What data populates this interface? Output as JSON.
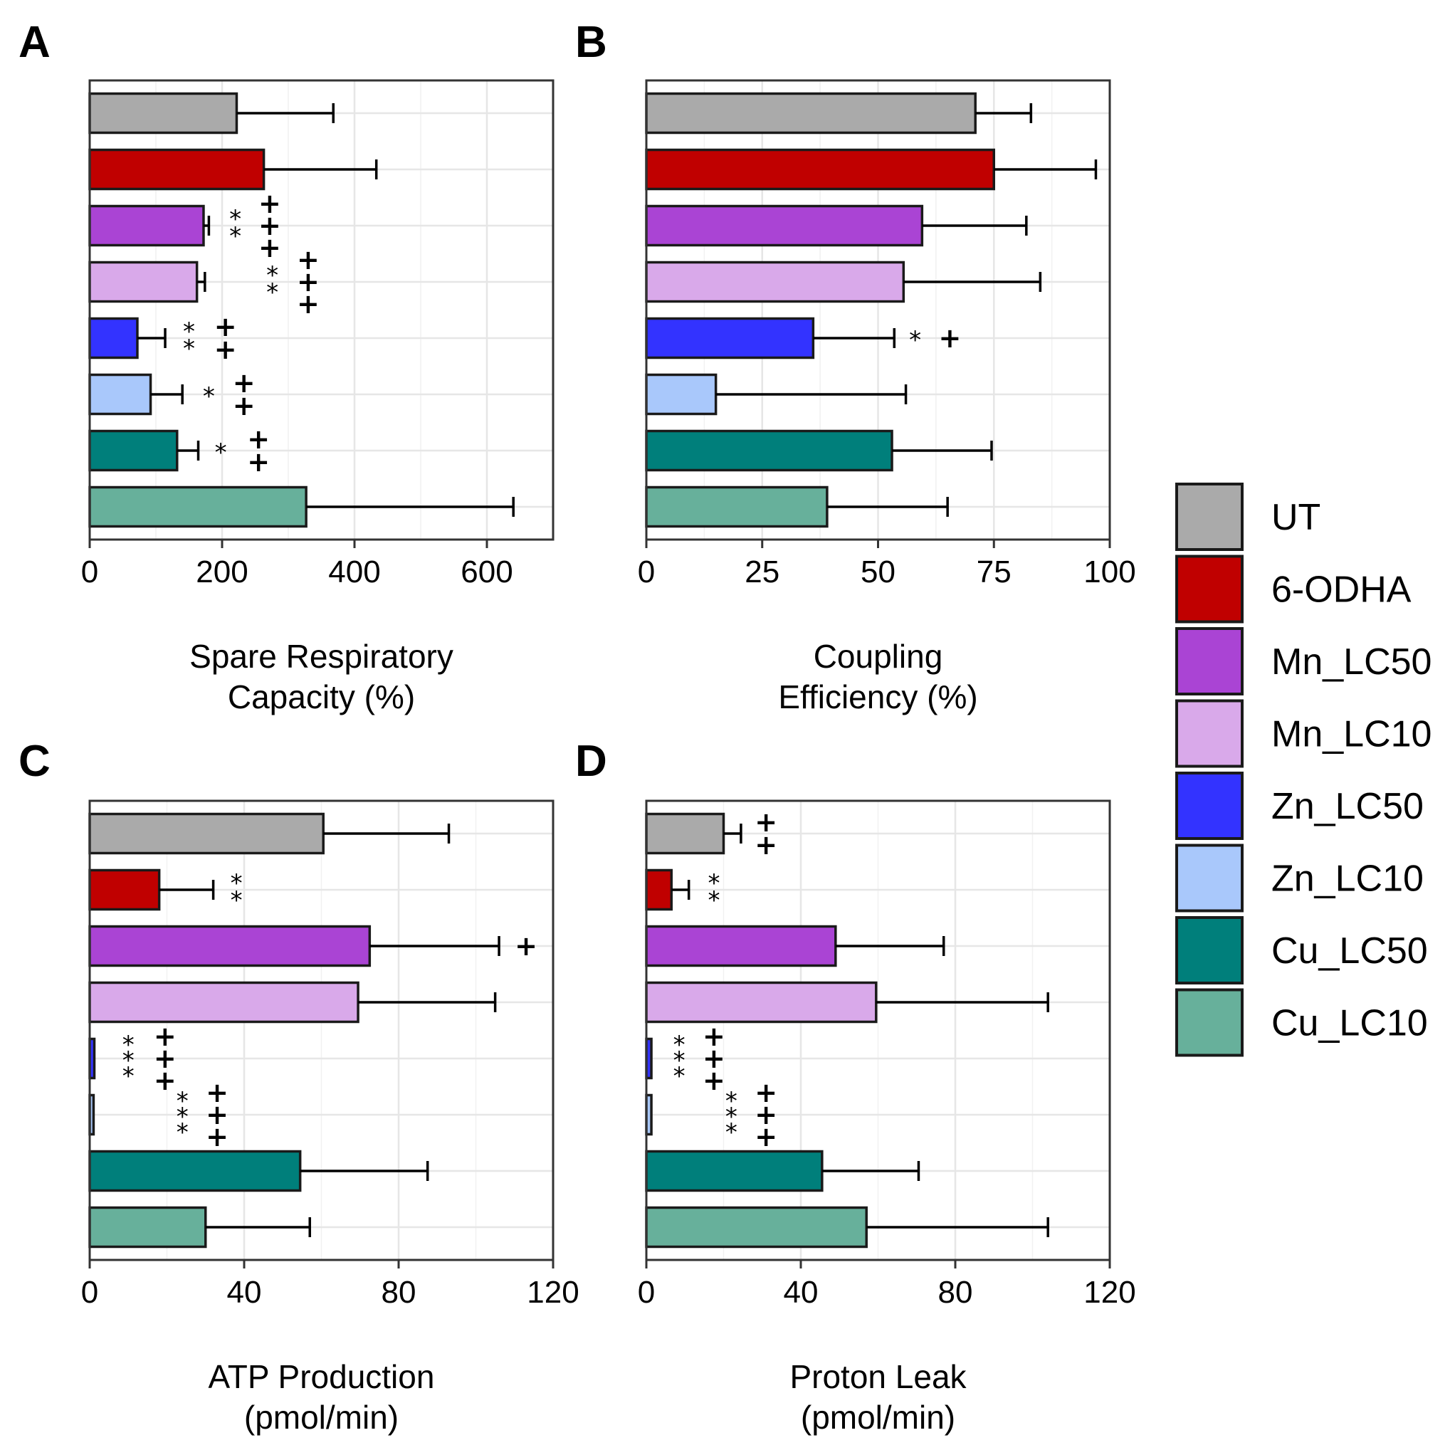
{
  "figure": {
    "legend_title": "",
    "legend": [
      {
        "name": "UT",
        "color": "#aaaaaa"
      },
      {
        "name": "6-ODHA",
        "color": "#c00000"
      },
      {
        "name": "Mn_LC50",
        "color": "#aa44d4"
      },
      {
        "name": "Mn_LC10",
        "color": "#d9a9ea"
      },
      {
        "name": "Zn_LC50",
        "color": "#3333ff"
      },
      {
        "name": "Zn_LC10",
        "color": "#a9c8fb"
      },
      {
        "name": "Cu_LC50",
        "color": "#007f7b"
      },
      {
        "name": "Cu_LC10",
        "color": "#67b09b"
      }
    ]
  },
  "chart_data": [
    {
      "panel": "A",
      "type": "bar",
      "orientation": "horizontal",
      "categories": [
        "UT",
        "6-ODHA",
        "Mn_LC50",
        "Mn_LC10",
        "Zn_LC50",
        "Zn_LC10",
        "Cu_LC50",
        "Cu_LC10"
      ],
      "values": [
        222,
        263,
        172,
        162,
        72,
        92,
        132,
        327
      ],
      "errors": [
        146,
        170,
        8,
        12,
        42,
        48,
        32,
        313
      ],
      "xlim": [
        0,
        700
      ],
      "xticks": [
        0,
        200,
        400,
        600
      ],
      "xlabel": [
        "Spare Respiratory",
        "Capacity (%)"
      ],
      "significance": [
        {
          "bar": 2,
          "stars": 2,
          "stars_x": 220,
          "plus": 3,
          "plus_x": 272
        },
        {
          "bar": 3,
          "stars": 2,
          "stars_x": 276,
          "plus": 3,
          "plus_x": 330
        },
        {
          "bar": 4,
          "stars": 2,
          "stars_x": 150,
          "plus": 2,
          "plus_x": 205
        },
        {
          "bar": 5,
          "stars": 1,
          "stars_x": 180,
          "plus": 2,
          "plus_x": 233
        },
        {
          "bar": 6,
          "stars": 1,
          "stars_x": 198,
          "plus": 2,
          "plus_x": 255
        }
      ]
    },
    {
      "panel": "B",
      "type": "bar",
      "orientation": "horizontal",
      "categories": [
        "UT",
        "6-ODHA",
        "Mn_LC50",
        "Mn_LC10",
        "Zn_LC50",
        "Zn_LC10",
        "Cu_LC50",
        "Cu_LC10"
      ],
      "values": [
        71,
        75,
        59.5,
        55.5,
        36,
        15,
        53,
        39
      ],
      "errors": [
        12,
        22,
        22.5,
        29.5,
        17.5,
        41,
        21.5,
        26
      ],
      "xlim": [
        0,
        100
      ],
      "xticks": [
        0,
        25,
        50,
        75,
        100
      ],
      "xlabel": [
        "Coupling",
        "Efficiency (%)"
      ],
      "significance": [
        {
          "bar": 4,
          "stars": 1,
          "stars_x": 58,
          "plus": 1,
          "plus_x": 65.5
        }
      ]
    },
    {
      "panel": "C",
      "type": "bar",
      "orientation": "horizontal",
      "categories": [
        "UT",
        "6-ODHA",
        "Mn_LC50",
        "Mn_LC10",
        "Zn_LC50",
        "Zn_LC10",
        "Cu_LC50",
        "Cu_LC10"
      ],
      "values": [
        60.5,
        18,
        72.5,
        69.5,
        1.2,
        1.0,
        54.5,
        30
      ],
      "errors": [
        32.5,
        14,
        33.5,
        35.5,
        0,
        0,
        33,
        27
      ],
      "xlim": [
        0,
        120
      ],
      "xticks": [
        0,
        40,
        80,
        120
      ],
      "xlabel": [
        "ATP Production",
        "(pmol/min)"
      ],
      "significance": [
        {
          "bar": 1,
          "stars": 2,
          "stars_x": 38,
          "plus": 0,
          "plus_x": 0
        },
        {
          "bar": 2,
          "stars": 0,
          "stars_x": 0,
          "plus": 1,
          "plus_x": 113
        },
        {
          "bar": 4,
          "stars": 3,
          "stars_x": 10,
          "plus": 3,
          "plus_x": 19.5
        },
        {
          "bar": 5,
          "stars": 3,
          "stars_x": 24,
          "plus": 3,
          "plus_x": 33
        }
      ]
    },
    {
      "panel": "D",
      "type": "bar",
      "orientation": "horizontal",
      "categories": [
        "UT",
        "6-ODHA",
        "Mn_LC50",
        "Mn_LC10",
        "Zn_LC50",
        "Zn_LC10",
        "Cu_LC50",
        "Cu_LC10"
      ],
      "values": [
        20,
        6.5,
        49,
        59.5,
        1.3,
        1.3,
        45.5,
        57
      ],
      "errors": [
        4.5,
        4.5,
        28,
        44.5,
        0,
        0,
        25,
        47
      ],
      "xlim": [
        0,
        120
      ],
      "xticks": [
        0,
        40,
        80,
        120
      ],
      "xlabel": [
        "Proton Leak",
        "(pmol/min)"
      ],
      "significance": [
        {
          "bar": 0,
          "stars": 0,
          "stars_x": 0,
          "plus": 2,
          "plus_x": 31
        },
        {
          "bar": 1,
          "stars": 2,
          "stars_x": 17.5,
          "plus": 0,
          "plus_x": 0
        },
        {
          "bar": 4,
          "stars": 3,
          "stars_x": 8.5,
          "plus": 3,
          "plus_x": 17.5
        },
        {
          "bar": 5,
          "stars": 3,
          "stars_x": 22,
          "plus": 3,
          "plus_x": 31
        }
      ]
    }
  ]
}
